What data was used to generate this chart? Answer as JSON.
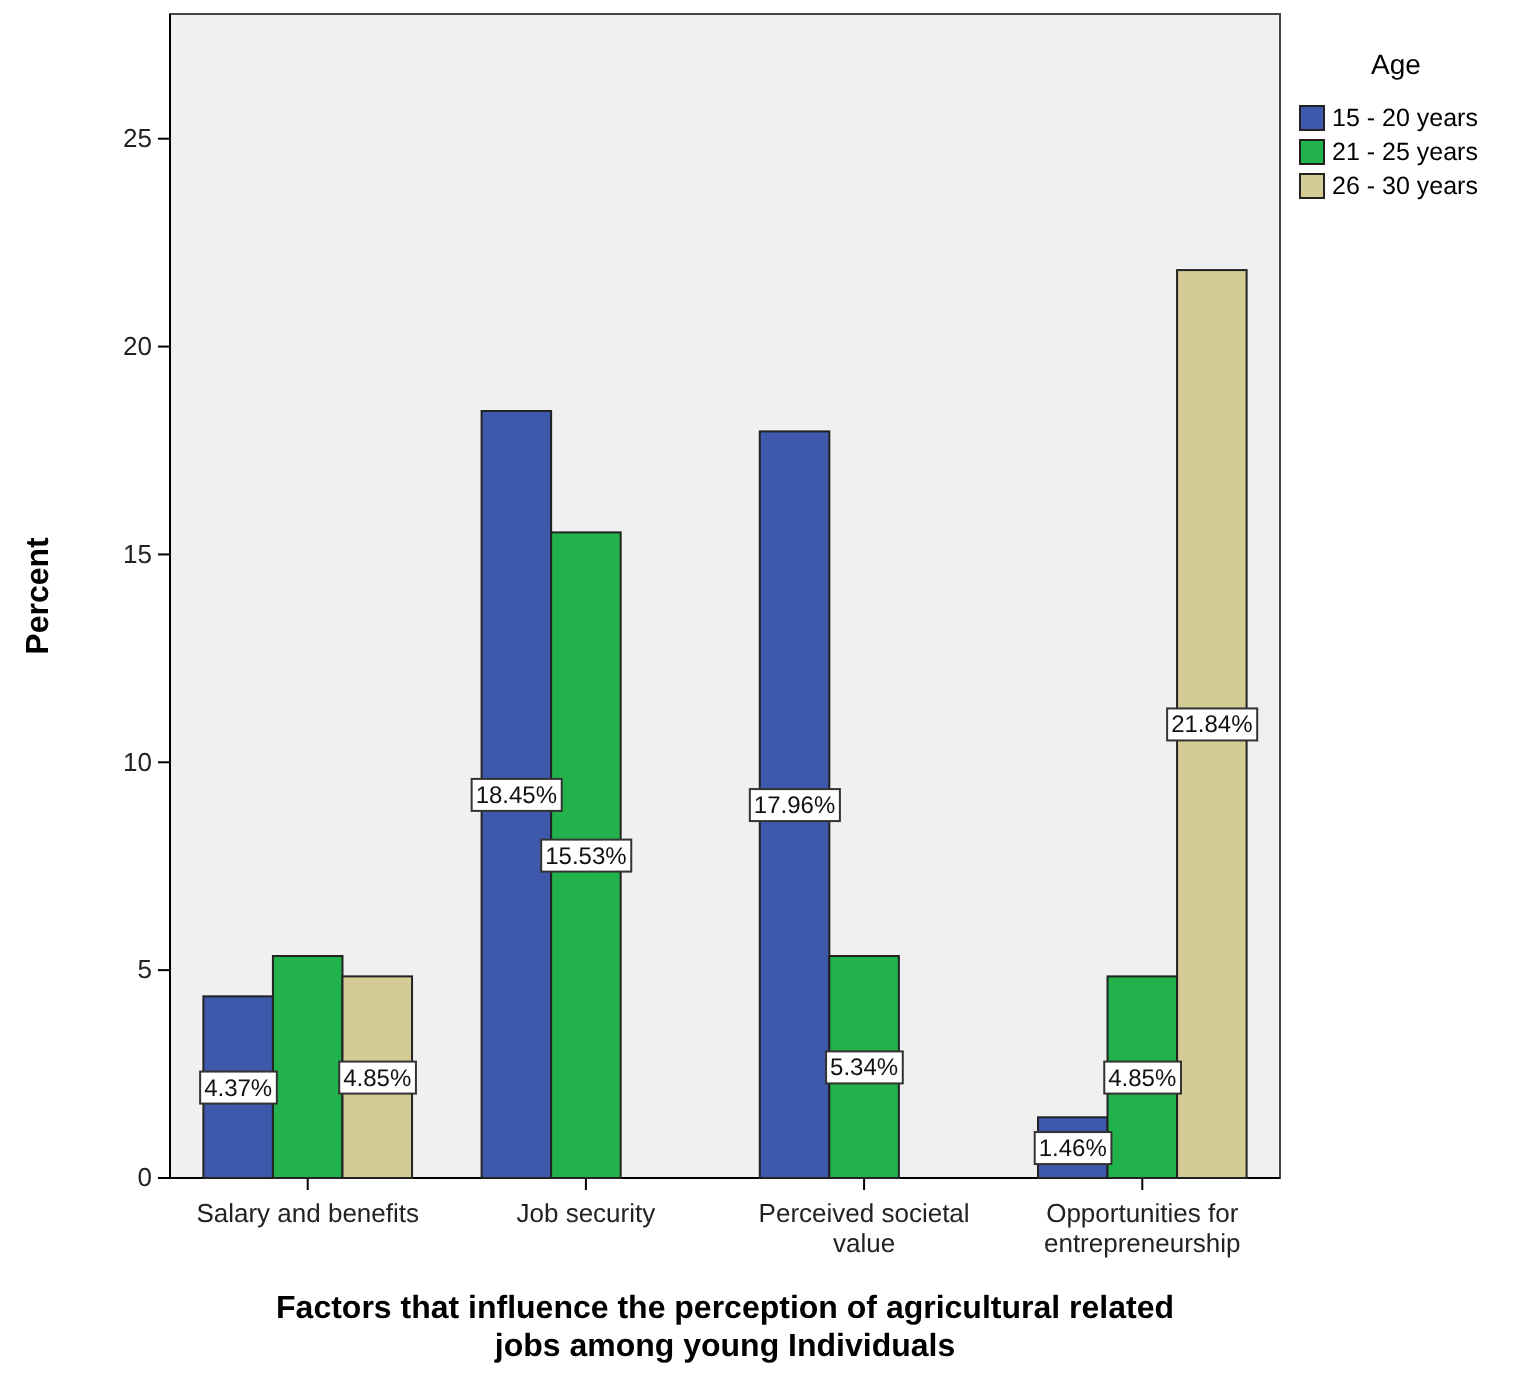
{
  "chart_data": {
    "type": "bar",
    "xlabel": "Factors that influence the perception of agricultural related jobs among young Individuals",
    "ylabel": "Percent",
    "legend_title": "Age",
    "legend": "top right",
    "categories": [
      "Salary and benefits",
      "Job security",
      "Perceived societal value",
      "Opportunities for entrepreneurship"
    ],
    "series": [
      {
        "name": "15 - 20 years",
        "color": "#3e58ac",
        "values": [
          4.37,
          18.45,
          17.96,
          1.46
        ],
        "value_labels": [
          "4.37%",
          "18.45%",
          "17.96%",
          "1.46%"
        ]
      },
      {
        "name": "21 - 25 years",
        "color": "#21b24b",
        "values": [
          5.34,
          15.53,
          5.34,
          4.85
        ],
        "value_labels": [
          null,
          "15.53%",
          "5.34%",
          "4.85%"
        ]
      },
      {
        "name": "26 - 30 years",
        "color": "#d4cc94",
        "values": [
          4.85,
          null,
          null,
          21.84
        ],
        "value_labels": [
          "4.85%",
          null,
          null,
          "21.84%"
        ]
      }
    ],
    "ylim": [
      0,
      28
    ],
    "yticks": [
      0,
      5,
      10,
      15,
      20,
      25
    ],
    "grid": false
  }
}
